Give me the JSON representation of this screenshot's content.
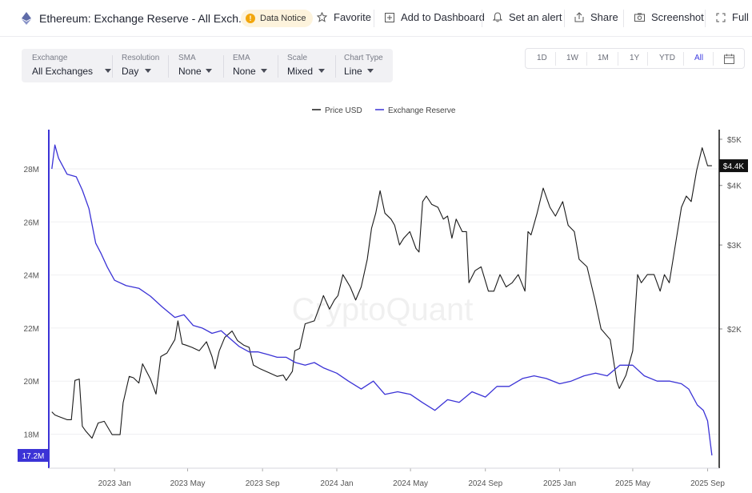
{
  "header": {
    "title": "Ethereum: Exchange Reserve - All Exch...",
    "data_notice": "Data Notice",
    "favorite": "Favorite",
    "add_dashboard": "Add to Dashboard",
    "alert": "Set an alert",
    "share": "Share",
    "screenshot": "Screenshot",
    "full": "Full"
  },
  "filters": [
    {
      "label": "Exchange",
      "value": "All Exchanges"
    },
    {
      "label": "Resolution",
      "value": "Day"
    },
    {
      "label": "SMA",
      "value": "None"
    },
    {
      "label": "EMA",
      "value": "None"
    },
    {
      "label": "Scale",
      "value": "Mixed"
    },
    {
      "label": "Chart Type",
      "value": "Line"
    }
  ],
  "range": {
    "buttons": [
      "1D",
      "1W",
      "1M",
      "1Y",
      "YTD",
      "All"
    ],
    "active": "All"
  },
  "colors": {
    "price": "#1a1a1a",
    "reserve": "#3b33d6"
  },
  "chart_data": {
    "type": "line",
    "watermark": "CryptoQuant",
    "legend": {
      "placement": "top-center",
      "entries": [
        "Price USD",
        "Exchange Reserve"
      ]
    },
    "x_ticks": [
      "2023 Jan",
      "2023 May",
      "2023 Sep",
      "2024 Jan",
      "2024 May",
      "2024 Sep",
      "2025 Jan",
      "2025 May",
      "2025 Sep"
    ],
    "left_axis": {
      "ticks": [
        "28M",
        "26M",
        "24M",
        "22M",
        "20M",
        "18M"
      ],
      "values": [
        28,
        26,
        24,
        22,
        20,
        18
      ],
      "unit": "M",
      "last_value_label": "17.2M"
    },
    "right_axis": {
      "scale": "log",
      "ticks": [
        "$5K",
        "$4K",
        "$3K",
        "$2K"
      ],
      "values": [
        5000,
        4000,
        3000,
        2000
      ],
      "last_value_label": "$4.4K"
    },
    "grid": "horizontal",
    "series": [
      {
        "name": "Price USD",
        "axis": "right",
        "x": [
          "2022-09-20",
          "2022-09-25",
          "2022-10-01",
          "2022-10-08",
          "2022-10-15",
          "2022-10-22",
          "2022-10-28",
          "2022-11-04",
          "2022-11-09",
          "2022-11-15",
          "2022-11-25",
          "2022-12-05",
          "2022-12-15",
          "2022-12-28",
          "2023-01-10",
          "2023-01-15",
          "2023-01-25",
          "2023-02-01",
          "2023-02-10",
          "2023-02-16",
          "2023-03-01",
          "2023-03-10",
          "2023-03-18",
          "2023-03-28",
          "2023-04-10",
          "2023-04-15",
          "2023-04-22",
          "2023-04-28",
          "2023-05-08",
          "2023-05-20",
          "2023-06-01",
          "2023-06-10",
          "2023-06-15",
          "2023-06-22",
          "2023-07-01",
          "2023-07-13",
          "2023-07-22",
          "2023-08-01",
          "2023-08-10",
          "2023-08-17",
          "2023-08-28",
          "2023-09-11",
          "2023-09-25",
          "2023-10-05",
          "2023-10-10",
          "2023-10-20",
          "2023-10-24",
          "2023-11-01",
          "2023-11-10",
          "2023-11-25",
          "2023-12-05",
          "2023-12-10",
          "2023-12-20",
          "2023-12-28",
          "2024-01-03",
          "2024-01-11",
          "2024-01-15",
          "2024-01-23",
          "2024-02-01",
          "2024-02-10",
          "2024-02-20",
          "2024-02-27",
          "2024-03-05",
          "2024-03-12",
          "2024-03-20",
          "2024-03-30",
          "2024-04-05",
          "2024-04-13",
          "2024-04-20",
          "2024-04-30",
          "2024-05-10",
          "2024-05-15",
          "2024-05-21",
          "2024-05-27",
          "2024-06-05",
          "2024-06-15",
          "2024-06-24",
          "2024-07-01",
          "2024-07-08",
          "2024-07-15",
          "2024-07-25",
          "2024-08-01",
          "2024-08-05",
          "2024-08-15",
          "2024-08-25",
          "2024-09-06",
          "2024-09-15",
          "2024-09-25",
          "2024-10-05",
          "2024-10-15",
          "2024-10-25",
          "2024-11-05",
          "2024-11-10",
          "2024-11-15",
          "2024-11-25",
          "2024-12-05",
          "2024-12-16",
          "2024-12-25",
          "2025-01-06",
          "2025-01-15",
          "2025-01-25",
          "2025-02-02",
          "2025-02-15",
          "2025-02-28",
          "2025-03-10",
          "2025-03-25",
          "2025-04-05",
          "2025-04-09",
          "2025-04-20",
          "2025-05-01",
          "2025-05-09",
          "2025-05-15",
          "2025-05-25",
          "2025-06-05",
          "2025-06-15",
          "2025-06-22",
          "2025-06-30",
          "2025-07-10",
          "2025-07-20",
          "2025-07-28",
          "2025-08-05",
          "2025-08-14",
          "2025-08-23",
          "2025-09-01",
          "2025-09-08"
        ],
        "y": [
          1340,
          1320,
          1310,
          1300,
          1290,
          1290,
          1560,
          1570,
          1250,
          1220,
          1180,
          1270,
          1280,
          1200,
          1200,
          1400,
          1590,
          1580,
          1540,
          1690,
          1570,
          1460,
          1750,
          1780,
          1900,
          2080,
          1860,
          1850,
          1830,
          1800,
          1880,
          1750,
          1650,
          1800,
          1920,
          1980,
          1890,
          1850,
          1830,
          1680,
          1650,
          1620,
          1590,
          1600,
          1560,
          1630,
          1800,
          1820,
          2050,
          2080,
          2250,
          2350,
          2200,
          2300,
          2350,
          2600,
          2550,
          2450,
          2300,
          2450,
          2800,
          3250,
          3500,
          3900,
          3500,
          3400,
          3300,
          3000,
          3100,
          3200,
          2950,
          2900,
          3700,
          3800,
          3650,
          3600,
          3400,
          3450,
          3100,
          3400,
          3200,
          3200,
          2500,
          2650,
          2700,
          2400,
          2400,
          2600,
          2450,
          2500,
          2600,
          2400,
          3200,
          3150,
          3500,
          3950,
          3600,
          3450,
          3700,
          3300,
          3200,
          2800,
          2700,
          2300,
          2000,
          1900,
          1550,
          1500,
          1600,
          1800,
          2600,
          2500,
          2600,
          2600,
          2400,
          2600,
          2500,
          3000,
          3600,
          3800,
          3700,
          4300,
          4800,
          4400,
          4400
        ]
      },
      {
        "name": "Exchange Reserve",
        "axis": "left",
        "x": [
          "2022-09-20",
          "2022-09-25",
          "2022-10-01",
          "2022-10-15",
          "2022-10-30",
          "2022-11-09",
          "2022-11-20",
          "2022-12-01",
          "2022-12-10",
          "2022-12-20",
          "2023-01-01",
          "2023-01-20",
          "2023-02-10",
          "2023-03-01",
          "2023-03-20",
          "2023-04-10",
          "2023-04-25",
          "2023-05-10",
          "2023-05-25",
          "2023-06-10",
          "2023-06-25",
          "2023-07-10",
          "2023-07-25",
          "2023-08-10",
          "2023-08-25",
          "2023-09-10",
          "2023-09-25",
          "2023-10-10",
          "2023-10-25",
          "2023-11-10",
          "2023-11-25",
          "2023-12-10",
          "2024-01-01",
          "2024-01-20",
          "2024-02-10",
          "2024-03-01",
          "2024-03-20",
          "2024-04-10",
          "2024-05-01",
          "2024-05-20",
          "2024-06-10",
          "2024-07-01",
          "2024-07-20",
          "2024-08-10",
          "2024-09-01",
          "2024-09-20",
          "2024-10-10",
          "2024-11-01",
          "2024-11-20",
          "2024-12-10",
          "2025-01-01",
          "2025-01-20",
          "2025-02-10",
          "2025-03-01",
          "2025-03-20",
          "2025-04-10",
          "2025-05-01",
          "2025-05-20",
          "2025-06-10",
          "2025-07-01",
          "2025-07-20",
          "2025-08-01",
          "2025-08-15",
          "2025-08-25",
          "2025-09-01",
          "2025-09-08"
        ],
        "y": [
          28.0,
          28.9,
          28.4,
          27.8,
          27.7,
          27.2,
          26.5,
          25.2,
          24.8,
          24.3,
          23.8,
          23.6,
          23.5,
          23.2,
          22.8,
          22.4,
          22.5,
          22.1,
          22.0,
          21.8,
          21.9,
          21.6,
          21.3,
          21.1,
          21.1,
          21.0,
          20.9,
          20.9,
          20.7,
          20.6,
          20.7,
          20.5,
          20.3,
          20.0,
          19.7,
          20.0,
          19.5,
          19.6,
          19.5,
          19.2,
          18.9,
          19.3,
          19.2,
          19.6,
          19.4,
          19.8,
          19.8,
          20.1,
          20.2,
          20.1,
          19.9,
          20.0,
          20.2,
          20.3,
          20.2,
          20.6,
          20.6,
          20.2,
          20.0,
          20.0,
          19.9,
          19.7,
          19.1,
          18.9,
          18.5,
          17.2
        ]
      }
    ]
  }
}
